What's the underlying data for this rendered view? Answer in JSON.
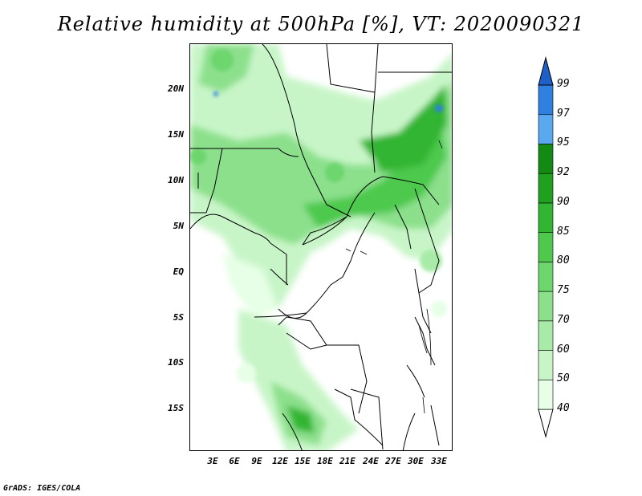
{
  "title": "Relative humidity at 500hPa [%], VT: 2020090321",
  "credit": "GrADS: IGES/COLA",
  "map": {
    "lat_labels": [
      "20N",
      "15N",
      "10N",
      "5N",
      "EQ",
      "5S",
      "10S",
      "15S"
    ],
    "lon_labels": [
      "3E",
      "6E",
      "9E",
      "12E",
      "15E",
      "18E",
      "21E",
      "24E",
      "27E",
      "30E",
      "33E"
    ]
  },
  "colorbar": {
    "levels": [
      "40",
      "50",
      "60",
      "70",
      "75",
      "80",
      "85",
      "90",
      "92",
      "95",
      "97",
      "99"
    ],
    "colors": [
      "#ffffff",
      "#e6ffe6",
      "#c8f5c8",
      "#a8eba8",
      "#8ce08c",
      "#6dd66d",
      "#4ec94e",
      "#32b532",
      "#1fa01f",
      "#138a13",
      "#5aa8f0",
      "#2f80e0",
      "#1f5fc8"
    ]
  }
}
